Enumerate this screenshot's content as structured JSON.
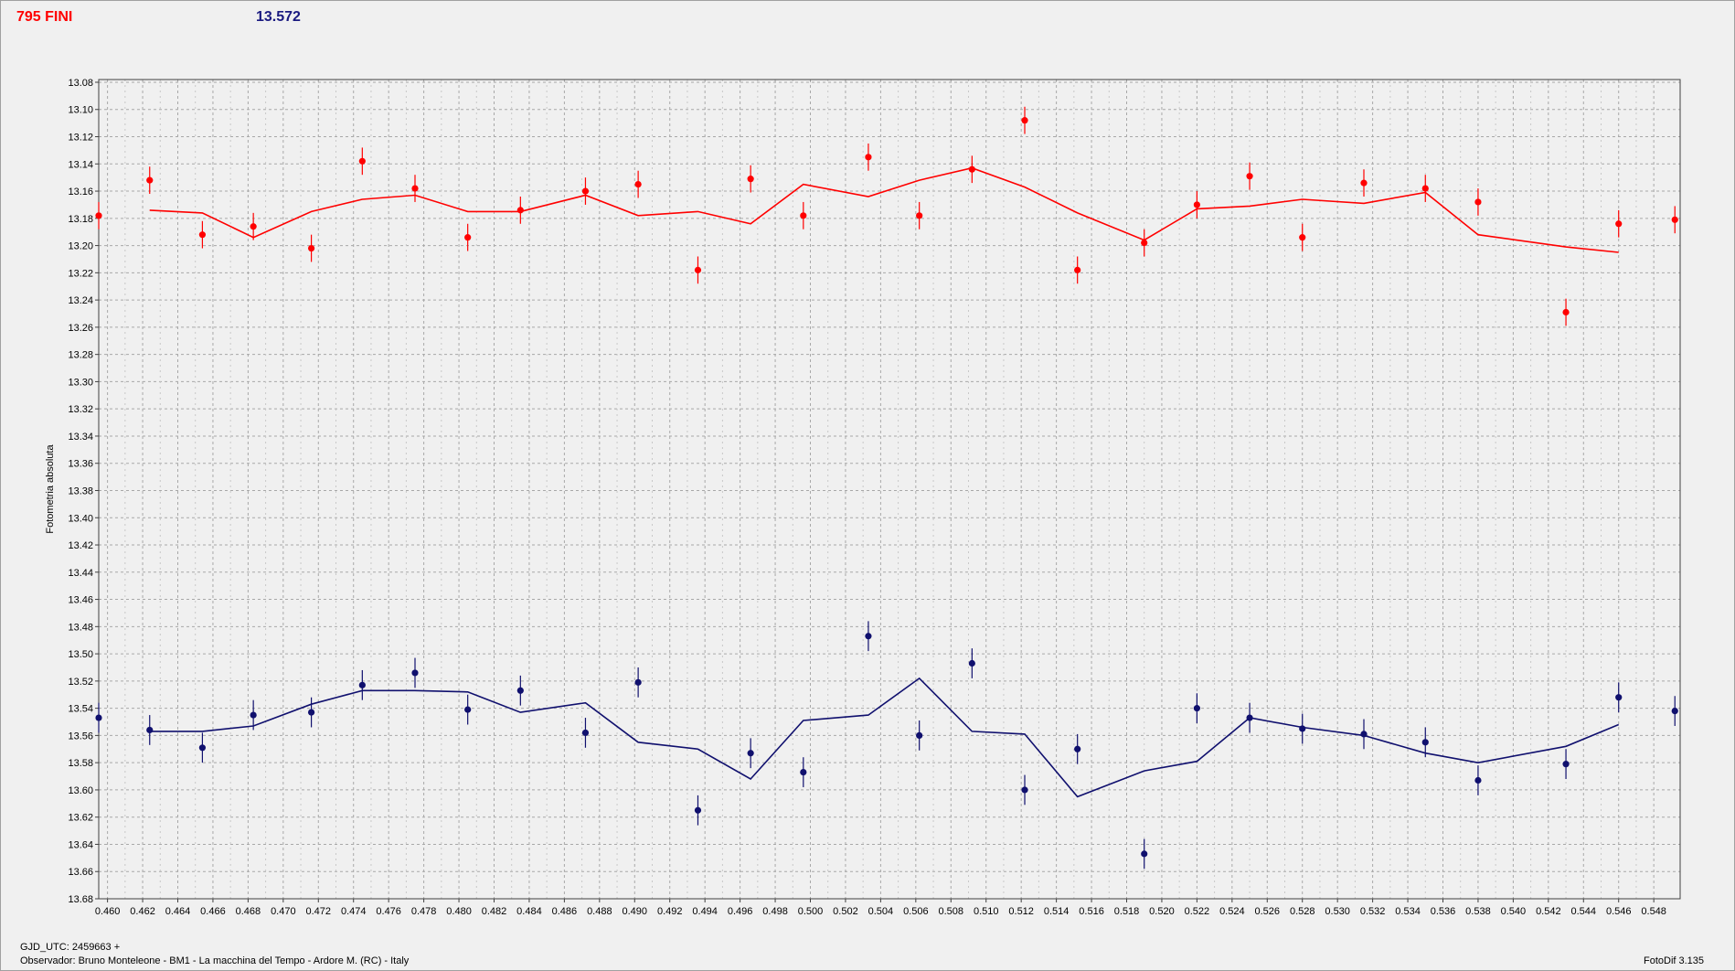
{
  "header": {
    "title_left": "795 FINI",
    "title_right": "13.572"
  },
  "footer": {
    "gjd": "GJD_UTC: 2459663 +",
    "observer": "Observador: Bruno Monteleone - BM1 - La macchina del Tempo - Ardore M. (RC) - Italy",
    "software": "FotoDif 3.135"
  },
  "colors": {
    "red_series": "#ff0000",
    "blue_series": "#10106e",
    "grid": "#a8a8a8",
    "plot_bg": "#f0f0f0"
  },
  "chart_data": {
    "type": "scatter",
    "title": "",
    "xlabel": "",
    "ylabel": "Fotometria absoluta",
    "xlim": [
      0.4595,
      0.5495
    ],
    "ylim": [
      13.68,
      13.078
    ],
    "y_inverted": true,
    "grid": true,
    "x_ticks": [
      "0.460",
      "0.462",
      "0.464",
      "0.466",
      "0.468",
      "0.470",
      "0.472",
      "0.474",
      "0.476",
      "0.478",
      "0.480",
      "0.482",
      "0.484",
      "0.486",
      "0.488",
      "0.490",
      "0.492",
      "0.494",
      "0.496",
      "0.498",
      "0.500",
      "0.502",
      "0.504",
      "0.506",
      "0.508",
      "0.510",
      "0.512",
      "0.514",
      "0.516",
      "0.518",
      "0.520",
      "0.522",
      "0.524",
      "0.526",
      "0.528",
      "0.530",
      "0.532",
      "0.534",
      "0.536",
      "0.538",
      "0.540",
      "0.542",
      "0.544",
      "0.546",
      "0.548"
    ],
    "y_ticks": [
      "13.08",
      "13.10",
      "13.12",
      "13.14",
      "13.16",
      "13.18",
      "13.20",
      "13.22",
      "13.24",
      "13.26",
      "13.28",
      "13.30",
      "13.32",
      "13.34",
      "13.36",
      "13.38",
      "13.40",
      "13.42",
      "13.44",
      "13.46",
      "13.48",
      "13.50",
      "13.52",
      "13.54",
      "13.56",
      "13.58",
      "13.60",
      "13.62",
      "13.64",
      "13.66",
      "13.68"
    ],
    "series": [
      {
        "color": "#ff0000",
        "x": [
          0.4595,
          0.4624,
          0.4654,
          0.4683,
          0.4716,
          0.4745,
          0.4775,
          0.4805,
          0.4835,
          0.4872,
          0.4902,
          0.4936,
          0.4966,
          0.4996,
          0.5033,
          0.5062,
          0.5092,
          0.5122,
          0.5152,
          0.519,
          0.522,
          0.525,
          0.528,
          0.5315,
          0.535,
          0.538,
          0.543,
          0.546,
          0.5492
        ],
        "y": [
          13.178,
          13.152,
          13.192,
          13.186,
          13.202,
          13.138,
          13.158,
          13.194,
          13.174,
          13.16,
          13.155,
          13.218,
          13.151,
          13.178,
          13.135,
          13.178,
          13.144,
          13.108,
          13.218,
          13.198,
          13.17,
          13.149,
          13.194,
          13.154,
          13.158,
          13.168,
          13.249,
          13.184,
          13.181
        ],
        "err": [
          0.01,
          0.01,
          0.01,
          0.01,
          0.01,
          0.01,
          0.01,
          0.01,
          0.01,
          0.01,
          0.01,
          0.01,
          0.01,
          0.01,
          0.01,
          0.01,
          0.01,
          0.01,
          0.01,
          0.01,
          0.01,
          0.01,
          0.01,
          0.01,
          0.01,
          0.01,
          0.01,
          0.01,
          0.01
        ],
        "fit_x": [
          0.4624,
          0.4654,
          0.4683,
          0.4716,
          0.4745,
          0.4775,
          0.4805,
          0.4835,
          0.4872,
          0.4902,
          0.4936,
          0.4966,
          0.4996,
          0.5033,
          0.5062,
          0.5092,
          0.5122,
          0.5152,
          0.519,
          0.522,
          0.525,
          0.528,
          0.5315,
          0.535,
          0.538,
          0.543,
          0.546
        ],
        "fit_y": [
          13.174,
          13.176,
          13.194,
          13.175,
          13.166,
          13.163,
          13.175,
          13.175,
          13.163,
          13.178,
          13.175,
          13.184,
          13.155,
          13.164,
          13.152,
          13.143,
          13.157,
          13.176,
          13.196,
          13.173,
          13.171,
          13.166,
          13.169,
          13.161,
          13.192,
          13.201,
          13.205
        ]
      },
      {
        "color": "#10106e",
        "x": [
          0.4595,
          0.4624,
          0.4654,
          0.4683,
          0.4716,
          0.4745,
          0.4775,
          0.4805,
          0.4835,
          0.4872,
          0.4902,
          0.4936,
          0.4966,
          0.4996,
          0.5033,
          0.5062,
          0.5092,
          0.5122,
          0.5152,
          0.519,
          0.522,
          0.525,
          0.528,
          0.5315,
          0.535,
          0.538,
          0.543,
          0.546,
          0.5492
        ],
        "y": [
          13.547,
          13.556,
          13.569,
          13.545,
          13.543,
          13.523,
          13.514,
          13.541,
          13.527,
          13.558,
          13.521,
          13.615,
          13.573,
          13.587,
          13.487,
          13.56,
          13.507,
          13.6,
          13.57,
          13.647,
          13.54,
          13.547,
          13.555,
          13.559,
          13.565,
          13.593,
          13.581,
          13.532,
          13.542
        ],
        "err": [
          0.011,
          0.011,
          0.011,
          0.011,
          0.011,
          0.011,
          0.011,
          0.011,
          0.011,
          0.011,
          0.011,
          0.011,
          0.011,
          0.011,
          0.011,
          0.011,
          0.011,
          0.011,
          0.011,
          0.011,
          0.011,
          0.011,
          0.011,
          0.011,
          0.011,
          0.011,
          0.011,
          0.011,
          0.011
        ],
        "fit_x": [
          0.4624,
          0.4654,
          0.4683,
          0.4716,
          0.4745,
          0.4775,
          0.4805,
          0.4835,
          0.4872,
          0.4902,
          0.4936,
          0.4966,
          0.4996,
          0.5033,
          0.5062,
          0.5092,
          0.5122,
          0.5152,
          0.519,
          0.522,
          0.525,
          0.528,
          0.5315,
          0.535,
          0.538,
          0.543,
          0.546
        ],
        "fit_y": [
          13.557,
          13.557,
          13.553,
          13.537,
          13.527,
          13.527,
          13.528,
          13.543,
          13.536,
          13.565,
          13.57,
          13.592,
          13.549,
          13.545,
          13.518,
          13.557,
          13.559,
          13.605,
          13.586,
          13.579,
          13.547,
          13.554,
          13.56,
          13.573,
          13.58,
          13.568,
          13.552
        ]
      }
    ]
  }
}
